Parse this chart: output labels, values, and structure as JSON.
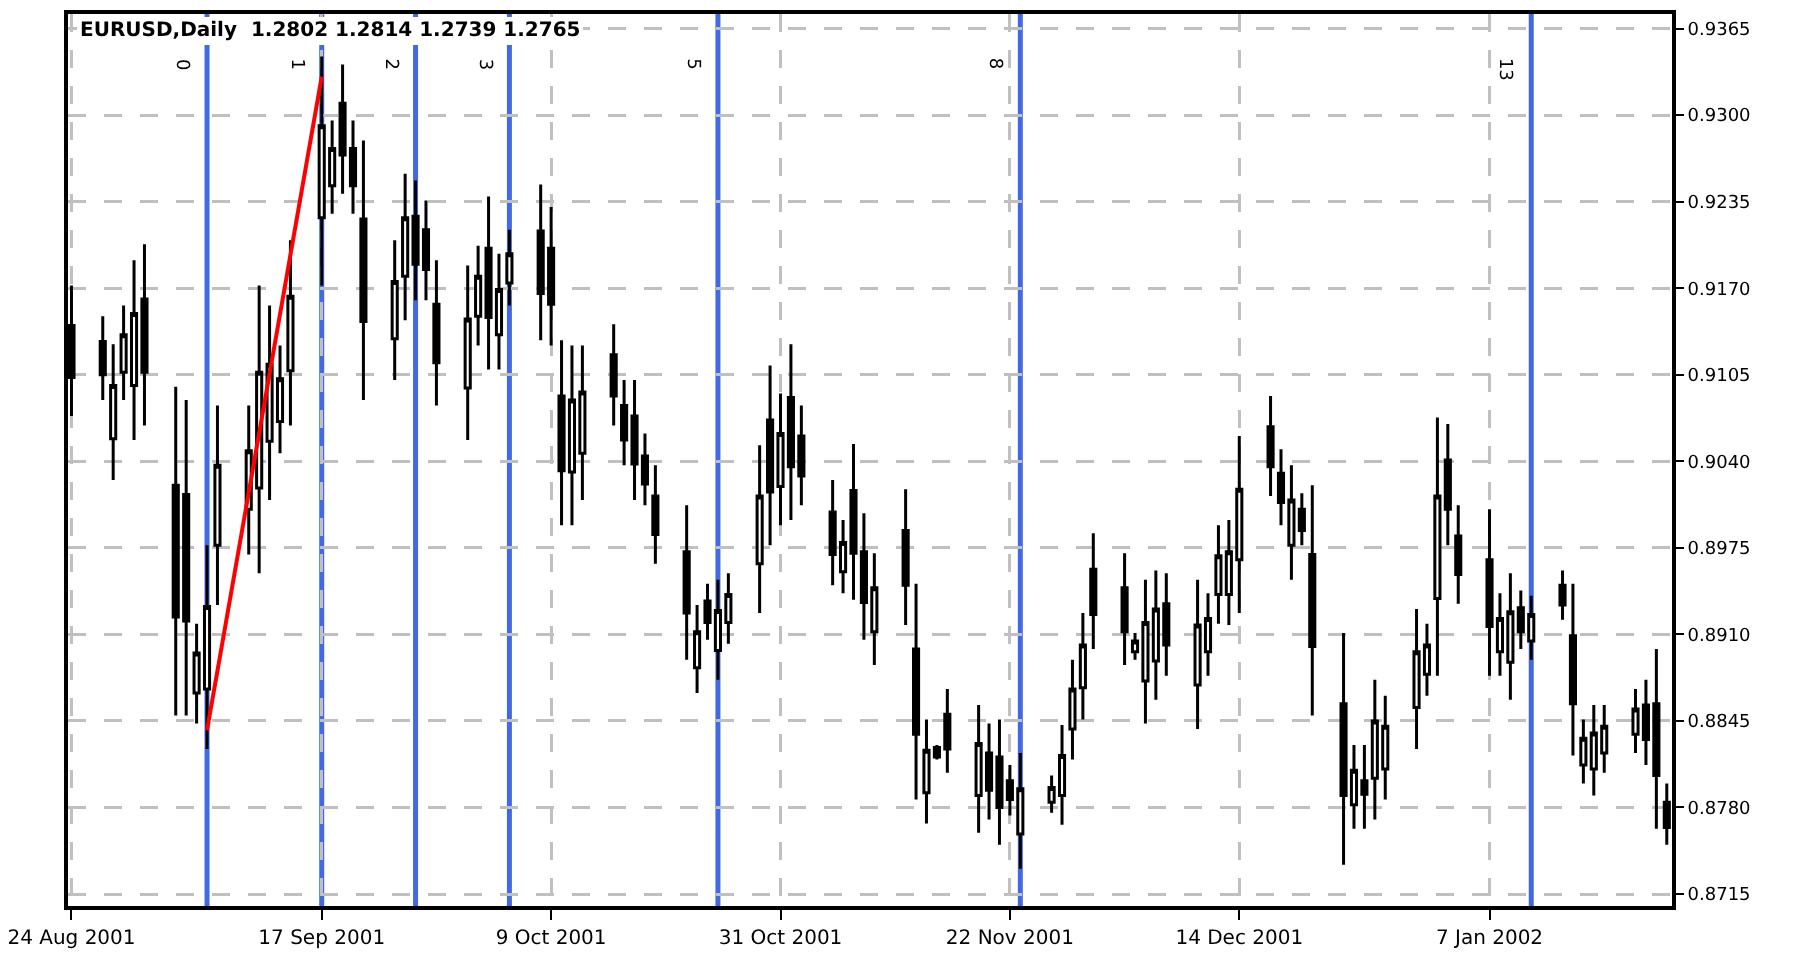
{
  "chart_data": {
    "type": "candlestick",
    "title": "EURUSD,Daily  1.2802 1.2814 1.2739 1.2765",
    "x": [
      "2001-08-24",
      "2001-08-27",
      "2001-08-28",
      "2001-08-29",
      "2001-08-30",
      "2001-08-31",
      "2001-09-03",
      "2001-09-04",
      "2001-09-05",
      "2001-09-06",
      "2001-09-07",
      "2001-09-10",
      "2001-09-11",
      "2001-09-12",
      "2001-09-13",
      "2001-09-14",
      "2001-09-17",
      "2001-09-18",
      "2001-09-19",
      "2001-09-20",
      "2001-09-21",
      "2001-09-24",
      "2001-09-25",
      "2001-09-26",
      "2001-09-27",
      "2001-09-28",
      "2001-10-01",
      "2001-10-02",
      "2001-10-03",
      "2001-10-04",
      "2001-10-05",
      "2001-10-08",
      "2001-10-09",
      "2001-10-10",
      "2001-10-11",
      "2001-10-12",
      "2001-10-15",
      "2001-10-16",
      "2001-10-17",
      "2001-10-18",
      "2001-10-19",
      "2001-10-22",
      "2001-10-23",
      "2001-10-24",
      "2001-10-25",
      "2001-10-26",
      "2001-10-29",
      "2001-10-30",
      "2001-10-31",
      "2001-11-01",
      "2001-11-02",
      "2001-11-05",
      "2001-11-06",
      "2001-11-07",
      "2001-11-08",
      "2001-11-09",
      "2001-11-12",
      "2001-11-13",
      "2001-11-14",
      "2001-11-15",
      "2001-11-16",
      "2001-11-19",
      "2001-11-20",
      "2001-11-21",
      "2001-11-22",
      "2001-11-23",
      "2001-11-26",
      "2001-11-27",
      "2001-11-28",
      "2001-11-29",
      "2001-11-30",
      "2001-12-03",
      "2001-12-04",
      "2001-12-05",
      "2001-12-06",
      "2001-12-07",
      "2001-12-10",
      "2001-12-11",
      "2001-12-12",
      "2001-12-13",
      "2001-12-14",
      "2001-12-17",
      "2001-12-18",
      "2001-12-19",
      "2001-12-20",
      "2001-12-21",
      "2001-12-24",
      "2001-12-25",
      "2001-12-26",
      "2001-12-27",
      "2001-12-28",
      "2001-12-31",
      "2002-01-01",
      "2002-01-02",
      "2002-01-03",
      "2002-01-04",
      "2002-01-07",
      "2002-01-08",
      "2002-01-09",
      "2002-01-10",
      "2002-01-11",
      "2002-01-14",
      "2002-01-15",
      "2002-01-16",
      "2002-01-17",
      "2002-01-18",
      "2002-01-21",
      "2002-01-22",
      "2002-01-23",
      "2002-01-24"
    ],
    "xlim": [
      "2001-08-23T16:00",
      "2002-01-24T12:00"
    ],
    "xticks": [
      {
        "value": "2001-08-24",
        "label": "24 Aug 2001"
      },
      {
        "value": "2001-09-17",
        "label": "17 Sep 2001"
      },
      {
        "value": "2001-10-09",
        "label": "9 Oct 2001"
      },
      {
        "value": "2001-10-31",
        "label": "31 Oct 2001"
      },
      {
        "value": "2001-11-22",
        "label": "22 Nov 2001"
      },
      {
        "value": "2001-12-14",
        "label": "14 Dec 2001"
      },
      {
        "value": "2002-01-07",
        "label": "7 Jan 2002"
      }
    ],
    "color": "#000000",
    "ohlc": [
      [
        0.9142,
        0.9172,
        0.9074,
        0.9103
      ],
      [
        0.913,
        0.9149,
        0.9086,
        0.9105
      ],
      [
        0.9057,
        0.9128,
        0.9026,
        0.9097
      ],
      [
        0.9107,
        0.9157,
        0.9086,
        0.9135
      ],
      [
        0.9097,
        0.9191,
        0.9056,
        0.9151
      ],
      [
        0.9162,
        0.9203,
        0.9067,
        0.9107
      ],
      [
        0.9022,
        0.9096,
        0.8849,
        0.8923
      ],
      [
        0.9015,
        0.9086,
        0.8849,
        0.892
      ],
      [
        0.8866,
        0.8918,
        0.8843,
        0.8896
      ],
      [
        0.8869,
        0.8977,
        0.8824,
        0.8931
      ],
      [
        0.8977,
        0.9082,
        0.8932,
        0.9037
      ],
      [
        0.9004,
        0.9082,
        0.897,
        0.9048
      ],
      [
        0.902,
        0.9172,
        0.8956,
        0.9107
      ],
      [
        0.9055,
        0.9157,
        0.9011,
        0.9113
      ],
      [
        0.907,
        0.9127,
        0.9046,
        0.9102
      ],
      [
        0.9108,
        0.9206,
        0.9067,
        0.9164
      ],
      [
        0.9223,
        0.9344,
        0.9172,
        0.9292
      ],
      [
        0.9247,
        0.9296,
        0.9226,
        0.9275
      ],
      [
        0.9309,
        0.9338,
        0.9241,
        0.927
      ],
      [
        0.9275,
        0.9296,
        0.9226,
        0.9247
      ],
      [
        0.9222,
        0.9281,
        0.9086,
        0.9145
      ],
      [
        0.9132,
        0.9206,
        0.9101,
        0.9175
      ],
      [
        0.9179,
        0.9256,
        0.9146,
        0.9223
      ],
      [
        0.9224,
        0.9251,
        0.9161,
        0.9188
      ],
      [
        0.9214,
        0.9236,
        0.9161,
        0.9184
      ],
      [
        0.9158,
        0.9191,
        0.9082,
        0.9114
      ],
      [
        0.9095,
        0.9187,
        0.9056,
        0.9147
      ],
      [
        0.9149,
        0.9202,
        0.9127,
        0.9179
      ],
      [
        0.92,
        0.9239,
        0.9109,
        0.9148
      ],
      [
        0.9135,
        0.9196,
        0.9109,
        0.9169
      ],
      [
        0.9174,
        0.9214,
        0.9157,
        0.9196
      ],
      [
        0.9213,
        0.9248,
        0.9131,
        0.9166
      ],
      [
        0.92,
        0.9231,
        0.9127,
        0.9158
      ],
      [
        0.9089,
        0.9131,
        0.8992,
        0.9033
      ],
      [
        0.9032,
        0.9127,
        0.8992,
        0.9086
      ],
      [
        0.9046,
        0.9127,
        0.9011,
        0.9092
      ],
      [
        0.912,
        0.9143,
        0.9067,
        0.9089
      ],
      [
        0.9082,
        0.9101,
        0.9037,
        0.9056
      ],
      [
        0.9074,
        0.9101,
        0.9011,
        0.9038
      ],
      [
        0.9044,
        0.9061,
        0.9007,
        0.9023
      ],
      [
        0.9014,
        0.9037,
        0.8963,
        0.8985
      ],
      [
        0.8972,
        0.9007,
        0.8891,
        0.8926
      ],
      [
        0.8885,
        0.8932,
        0.8866,
        0.8912
      ],
      [
        0.8935,
        0.8948,
        0.8906,
        0.8919
      ],
      [
        0.8898,
        0.8951,
        0.8876,
        0.8928
      ],
      [
        0.8919,
        0.8956,
        0.8903,
        0.894
      ],
      [
        0.8963,
        0.9052,
        0.8926,
        0.9014
      ],
      [
        0.9071,
        0.9112,
        0.8977,
        0.9017
      ],
      [
        0.9021,
        0.9091,
        0.8992,
        0.9061
      ],
      [
        0.9088,
        0.9128,
        0.8996,
        0.9036
      ],
      [
        0.9059,
        0.9082,
        0.9007,
        0.9029
      ],
      [
        0.9002,
        0.9026,
        0.8947,
        0.897
      ],
      [
        0.8957,
        0.8996,
        0.8941,
        0.8979
      ],
      [
        0.9018,
        0.9053,
        0.8936,
        0.8971
      ],
      [
        0.8972,
        0.9001,
        0.8906,
        0.8934
      ],
      [
        0.8912,
        0.8971,
        0.8887,
        0.8945
      ],
      [
        0.8988,
        0.9019,
        0.8917,
        0.8947
      ],
      [
        0.8899,
        0.8948,
        0.8786,
        0.8835
      ],
      [
        0.8791,
        0.8846,
        0.8768,
        0.8823
      ],
      [
        0.8825,
        0.8827,
        0.8816,
        0.8818
      ],
      [
        0.885,
        0.8869,
        0.8806,
        0.8824
      ],
      [
        0.8789,
        0.8857,
        0.8761,
        0.8828
      ],
      [
        0.8821,
        0.8843,
        0.8771,
        0.8793
      ],
      [
        0.8818,
        0.8846,
        0.8752,
        0.878
      ],
      [
        0.88,
        0.8812,
        0.8774,
        0.8786
      ],
      [
        0.876,
        0.8821,
        0.8734,
        0.8794
      ],
      [
        0.8784,
        0.8804,
        0.8776,
        0.8795
      ],
      [
        0.8789,
        0.8842,
        0.8767,
        0.8819
      ],
      [
        0.8839,
        0.8891,
        0.8816,
        0.8869
      ],
      [
        0.887,
        0.8926,
        0.8846,
        0.8902
      ],
      [
        0.8959,
        0.8986,
        0.8899,
        0.8925
      ],
      [
        0.8945,
        0.8971,
        0.8887,
        0.8912
      ],
      [
        0.8897,
        0.8911,
        0.8891,
        0.8905
      ],
      [
        0.8875,
        0.8951,
        0.8843,
        0.8919
      ],
      [
        0.889,
        0.8958,
        0.8861,
        0.8929
      ],
      [
        0.8933,
        0.8956,
        0.8879,
        0.8902
      ],
      [
        0.8872,
        0.8951,
        0.8839,
        0.8917
      ],
      [
        0.8897,
        0.8941,
        0.8879,
        0.8922
      ],
      [
        0.894,
        0.8992,
        0.8918,
        0.8969
      ],
      [
        0.894,
        0.8996,
        0.8917,
        0.8972
      ],
      [
        0.8966,
        0.9059,
        0.8926,
        0.9019
      ],
      [
        0.9066,
        0.9089,
        0.9014,
        0.9036
      ],
      [
        0.9031,
        0.9049,
        0.8992,
        0.9009
      ],
      [
        0.8977,
        0.9037,
        0.8951,
        0.9011
      ],
      [
        0.9004,
        0.9016,
        0.8977,
        0.8988
      ],
      [
        0.897,
        0.9022,
        0.8849,
        0.8901
      ],
      [
        0.8858,
        0.8911,
        0.8737,
        0.8789
      ],
      [
        0.8782,
        0.8827,
        0.8764,
        0.8808
      ],
      [
        0.88,
        0.8827,
        0.8764,
        0.879
      ],
      [
        0.8802,
        0.8876,
        0.8771,
        0.8845
      ],
      [
        0.8809,
        0.8864,
        0.8786,
        0.8841
      ],
      [
        0.8855,
        0.8929,
        0.8824,
        0.8897
      ],
      [
        0.888,
        0.8918,
        0.8864,
        0.8902
      ],
      [
        0.8937,
        0.9073,
        0.8879,
        0.9014
      ],
      [
        0.9041,
        0.9068,
        0.8977,
        0.9004
      ],
      [
        0.8984,
        0.9007,
        0.8933,
        0.8955
      ],
      [
        0.8966,
        0.9004,
        0.8879,
        0.8916
      ],
      [
        0.8897,
        0.8941,
        0.8879,
        0.8922
      ],
      [
        0.8889,
        0.8956,
        0.8861,
        0.8927
      ],
      [
        0.893,
        0.8943,
        0.8899,
        0.8912
      ],
      [
        0.8905,
        0.8939,
        0.8891,
        0.8925
      ],
      [
        0.8947,
        0.8958,
        0.8921,
        0.8932
      ],
      [
        0.8909,
        0.8948,
        0.8819,
        0.8858
      ],
      [
        0.8812,
        0.8846,
        0.8798,
        0.8832
      ],
      [
        0.8809,
        0.8857,
        0.8789,
        0.8836
      ],
      [
        0.8821,
        0.8857,
        0.8806,
        0.8841
      ],
      [
        0.8835,
        0.8869,
        0.8821,
        0.8854
      ],
      [
        0.8857,
        0.8876,
        0.8812,
        0.8831
      ],
      [
        0.8858,
        0.8899,
        0.8764,
        0.8804
      ],
      [
        0.8784,
        0.8798,
        0.8752,
        0.8765
      ]
    ],
    "series": [
      {
        "type": "line",
        "x": [
          "2001-09-06",
          "2001-09-17"
        ],
        "values": [
          0.8838,
          0.9329
        ],
        "color": "#ff0000"
      }
    ],
    "ref_lines": [
      {
        "axis": "x",
        "value": "2001-09-06",
        "label": "0",
        "color": "#4169e1",
        "line_style": "solid"
      },
      {
        "axis": "x",
        "value": "2001-09-17",
        "label": "1",
        "color": "#4169e1",
        "line_style": "solid"
      },
      {
        "axis": "x",
        "value": "2001-09-26",
        "label": "2",
        "color": "#4169e1",
        "line_style": "solid"
      },
      {
        "axis": "x",
        "value": "2001-10-05",
        "label": "3",
        "color": "#4169e1",
        "line_style": "solid"
      },
      {
        "axis": "x",
        "value": "2001-10-25",
        "label": "5",
        "color": "#4169e1",
        "line_style": "solid"
      },
      {
        "axis": "x",
        "value": "2001-11-23",
        "label": "8",
        "color": "#4169e1",
        "line_style": "solid"
      },
      {
        "axis": "x",
        "value": "2002-01-11",
        "label": "13",
        "color": "#4169e1",
        "line_style": "solid"
      }
    ],
    "ylim": [
      0.8706,
      0.9376
    ],
    "yticks": [
      0.9365,
      {
        "value": 0.93,
        "label": "0.9300"
      },
      0.9235,
      {
        "value": 0.917,
        "label": "0.9170"
      },
      0.9105,
      {
        "value": 0.904,
        "label": "0.9040"
      },
      0.8975,
      {
        "value": 0.891,
        "label": "0.8910"
      },
      0.8845,
      {
        "value": 0.878,
        "label": "0.8780"
      },
      0.8715
    ],
    "grid": true
  }
}
